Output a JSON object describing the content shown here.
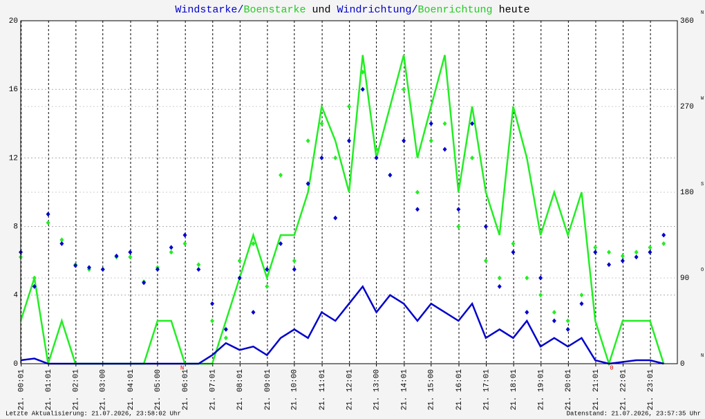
{
  "chart_data": {
    "type": "line",
    "title_parts": [
      "/",
      " und ",
      "/",
      " heute"
    ],
    "x": [
      0,
      0.5,
      1,
      1.5,
      2,
      2.5,
      3,
      3.5,
      4,
      4.5,
      5,
      5.5,
      6,
      6.5,
      7,
      7.5,
      8,
      8.5,
      9,
      9.5,
      10,
      10.5,
      11,
      11.5,
      12,
      12.5,
      13,
      13.5,
      14,
      14.5,
      15,
      15.5,
      16,
      16.5,
      17,
      17.5,
      18,
      18.5,
      19,
      19.5,
      20,
      20.5,
      21,
      21.5,
      22,
      22.5,
      23,
      23.5
    ],
    "xlim": [
      0,
      24
    ],
    "xticks": [
      {
        "value": 0.017,
        "label": "21. 00:01"
      },
      {
        "value": 1.017,
        "label": "21. 01:01"
      },
      {
        "value": 2.017,
        "label": "21. 02:01"
      },
      {
        "value": 3.0,
        "label": "21. 03:00"
      },
      {
        "value": 4.017,
        "label": "21. 04:01"
      },
      {
        "value": 5.0,
        "label": "21. 05:00"
      },
      {
        "value": 6.017,
        "label": "21. 06:01"
      },
      {
        "value": 7.017,
        "label": "21. 07:01"
      },
      {
        "value": 8.017,
        "label": "21. 08:01"
      },
      {
        "value": 9.017,
        "label": "21. 09:01"
      },
      {
        "value": 10.0,
        "label": "21. 10:00"
      },
      {
        "value": 11.017,
        "label": "21. 11:01"
      },
      {
        "value": 12.017,
        "label": "21. 12:01"
      },
      {
        "value": 13.0,
        "label": "21. 13:00"
      },
      {
        "value": 14.017,
        "label": "21. 14:01"
      },
      {
        "value": 15.0,
        "label": "21. 15:00"
      },
      {
        "value": 16.017,
        "label": "21. 16:01"
      },
      {
        "value": 17.017,
        "label": "21. 17:01"
      },
      {
        "value": 18.017,
        "label": "21. 18:01"
      },
      {
        "value": 19.017,
        "label": "21. 19:01"
      },
      {
        "value": 20.017,
        "label": "21. 20:01"
      },
      {
        "value": 21.017,
        "label": "21. 21:01"
      },
      {
        "value": 22.017,
        "label": "21. 22:01"
      },
      {
        "value": 23.017,
        "label": "21. 23:01"
      }
    ],
    "ylim": [
      0,
      20
    ],
    "yticks": [
      0,
      4,
      8,
      12,
      16,
      20
    ],
    "y2lim": [
      0,
      360
    ],
    "y2ticks": [
      0,
      90,
      180,
      270,
      360
    ],
    "y2_compass": [
      "N",
      "O",
      "S",
      "W",
      "N"
    ],
    "grid": true,
    "series": [
      {
        "name": "Windstarke",
        "type": "line",
        "color": "#0000cc",
        "values": [
          0.2,
          0.3,
          0,
          0,
          0,
          0,
          0,
          0,
          0,
          0,
          0,
          0,
          0,
          0,
          0.5,
          1.2,
          0.8,
          1.0,
          0.5,
          1.5,
          2.0,
          1.5,
          3.0,
          2.5,
          3.5,
          4.5,
          3.0,
          4.0,
          3.5,
          2.5,
          3.5,
          3.0,
          2.5,
          3.5,
          1.5,
          2.0,
          1.5,
          2.5,
          1.0,
          1.5,
          1.0,
          1.5,
          0.2,
          0,
          0.1,
          0.2,
          0.2,
          0
        ]
      },
      {
        "name": "Boenstarke",
        "type": "line",
        "color": "#22ee22",
        "values": [
          2.5,
          5,
          0,
          2.5,
          0,
          0,
          0,
          0,
          0,
          0,
          2.5,
          2.5,
          0,
          0,
          0,
          2.5,
          5,
          7.5,
          5,
          7.5,
          7.5,
          10,
          15,
          13,
          10,
          18,
          12,
          15,
          18,
          12,
          15,
          18,
          10,
          15,
          10,
          7.5,
          15,
          12,
          7.5,
          10,
          7.5,
          10,
          2.5,
          0,
          2.5,
          2.5,
          2.5,
          0
        ]
      },
      {
        "name": "Windrichtung",
        "type": "scatter",
        "axis": "y2",
        "color": "#0000cc",
        "values": [
          117,
          81,
          157,
          126,
          103,
          101,
          99,
          113,
          117,
          85,
          99,
          122,
          135,
          99,
          63,
          36,
          90,
          54,
          99,
          126,
          99,
          189,
          216,
          153,
          234,
          288,
          216,
          198,
          234,
          162,
          252,
          225,
          162,
          252,
          144,
          81,
          117,
          54,
          90,
          45,
          36,
          63,
          117,
          104,
          108,
          112,
          117,
          135
        ]
      },
      {
        "name": "Boenrichtung",
        "type": "scatter",
        "axis": "y2",
        "color": "#22ee22",
        "values": [
          112,
          90,
          148,
          130,
          104,
          99,
          99,
          112,
          112,
          86,
          101,
          117,
          126,
          104,
          45,
          27,
          108,
          126,
          81,
          198,
          108,
          234,
          252,
          216,
          270,
          306,
          225,
          198,
          288,
          180,
          234,
          252,
          144,
          216,
          108,
          90,
          126,
          90,
          72,
          54,
          45,
          72,
          122,
          117,
          113,
          117,
          122,
          126
        ]
      }
    ],
    "annotations": [
      {
        "x": 5.9,
        "text": "N"
      },
      {
        "x": 21.6,
        "text": "0"
      }
    ],
    "footer_left": "Letzte Aktualisierung: 21.07.2026, 23:58:02 Uhr",
    "footer_right": "Datenstand: 21.07.2026, 23:57:35 Uhr"
  }
}
